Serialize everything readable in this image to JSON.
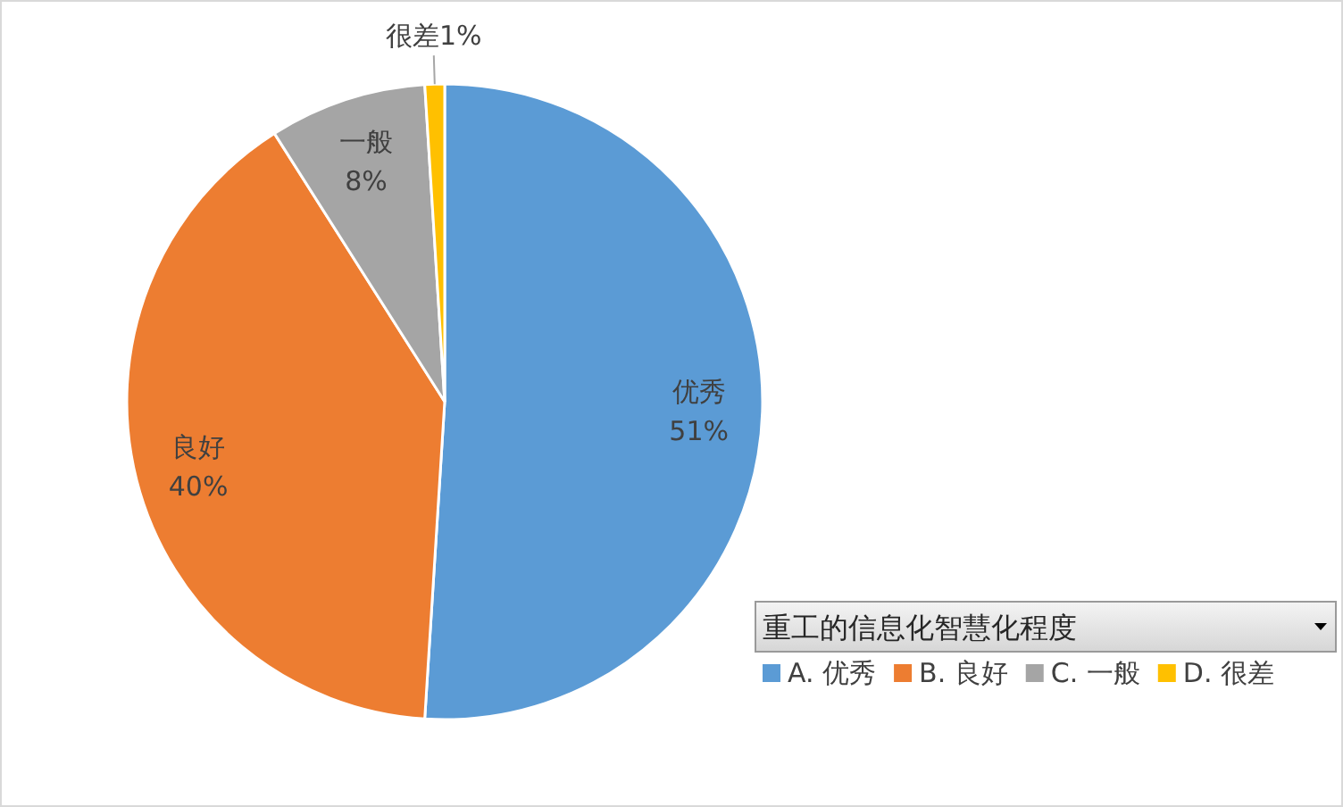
{
  "chart_data": {
    "type": "pie",
    "legend_title": "重工的信息化智慧化程度",
    "categories": [
      "A. 优秀",
      "B. 良好",
      "C. 一般",
      "D. 很差"
    ],
    "values": [
      51,
      40,
      8,
      1
    ],
    "colors": [
      "#5b9bd5",
      "#ed7d31",
      "#a5a5a5",
      "#ffc000"
    ],
    "value_labels": [
      "优秀\n51%",
      "良好\n40%",
      "一般\n8%",
      "很差1%"
    ],
    "legend": "bottom right"
  }
}
